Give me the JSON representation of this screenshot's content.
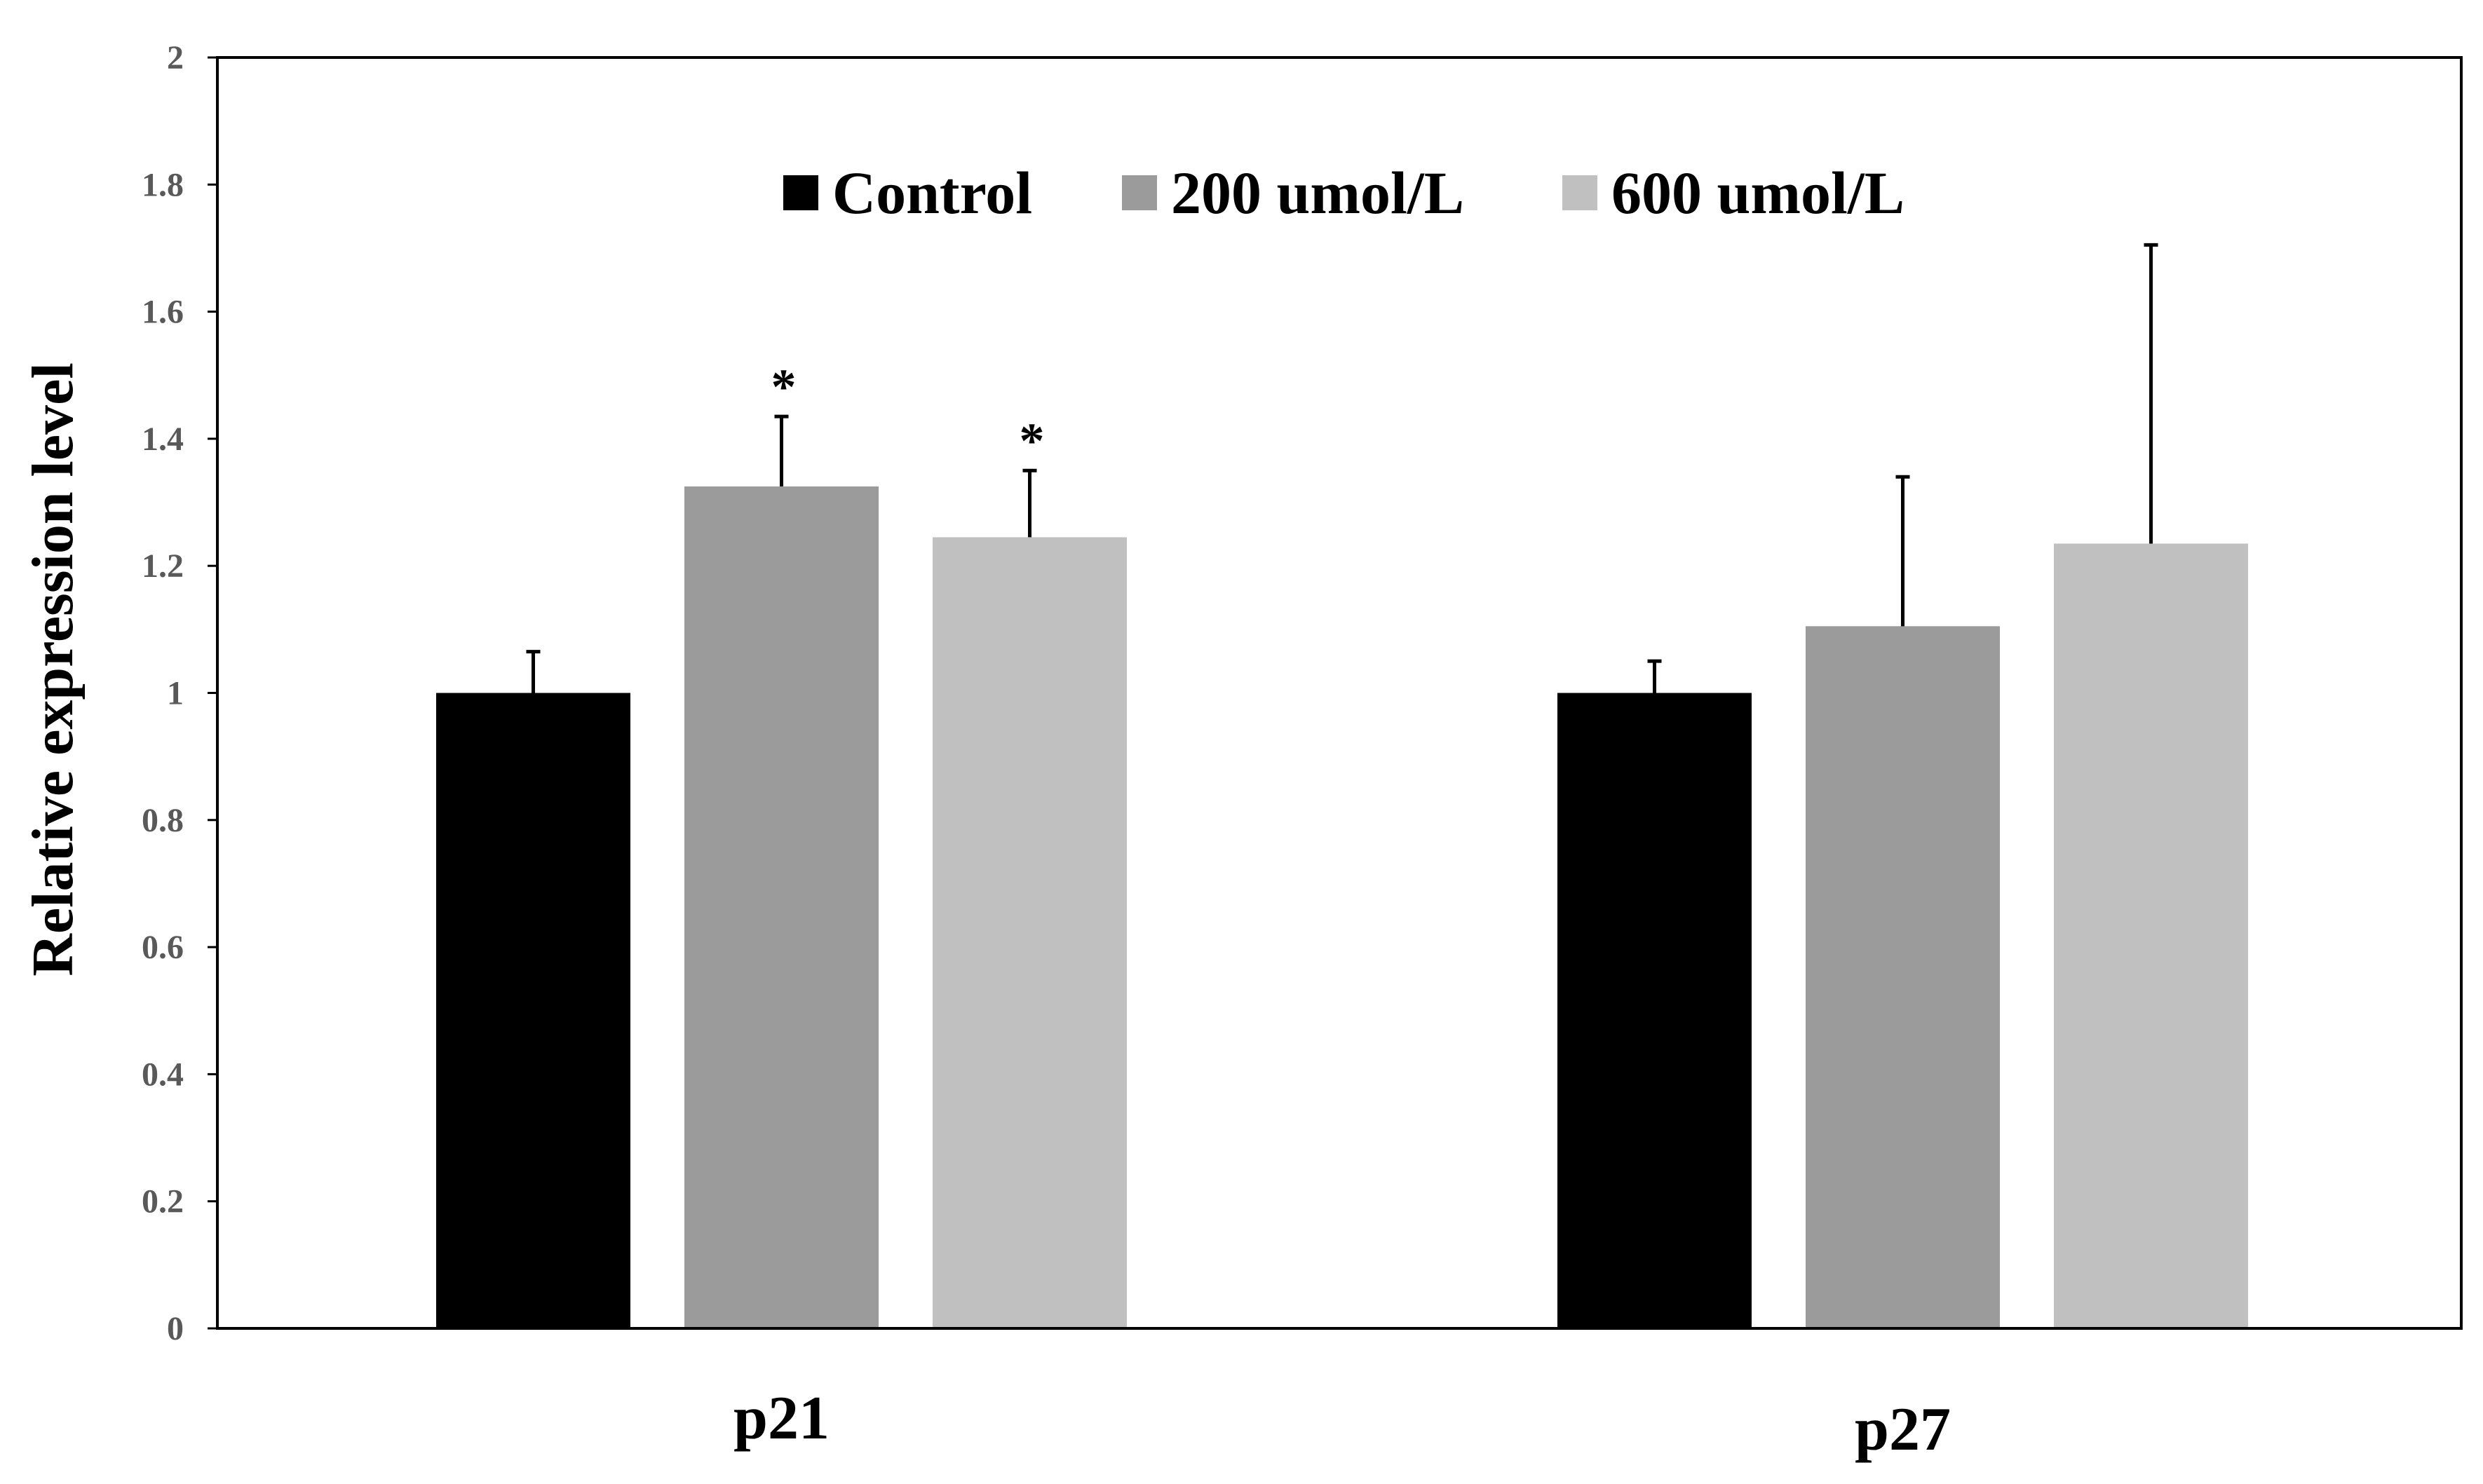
{
  "chart_data": {
    "type": "bar",
    "title": "",
    "xlabel": "",
    "ylabel": "Relative expression level",
    "ylim": [
      0,
      2
    ],
    "yticks": [
      "0",
      "0.2",
      "0.4",
      "0.6",
      "0.8",
      "1",
      "1.2",
      "1.4",
      "1.6",
      "1.8",
      "2"
    ],
    "grid": false,
    "legend_position": "top-center",
    "categories": [
      "p21",
      "p27"
    ],
    "series": [
      {
        "name": "Control",
        "color": "#000000",
        "values": [
          1.0,
          1.0
        ],
        "errors": [
          0.065,
          0.05
        ]
      },
      {
        "name": "200 umol/L",
        "color": "#9b9b9b",
        "values": [
          1.325,
          1.105
        ],
        "errors": [
          0.11,
          0.235
        ]
      },
      {
        "name": "600 umol/L",
        "color": "#c0c0c0",
        "values": [
          1.245,
          1.235
        ],
        "errors": [
          0.105,
          0.47
        ]
      }
    ],
    "annotations": [
      {
        "category": "p21",
        "series": "200 umol/L",
        "text": "*"
      },
      {
        "category": "p21",
        "series": "600 umol/L",
        "text": "*"
      }
    ]
  }
}
